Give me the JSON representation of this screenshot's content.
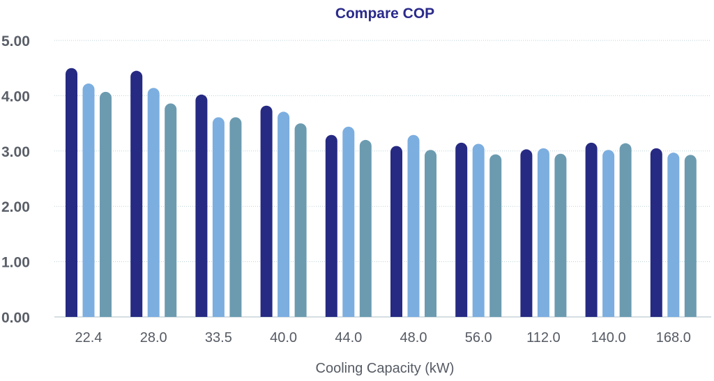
{
  "chart_data": {
    "type": "bar",
    "title": "Compare COP",
    "xlabel": "Cooling Capacity (kW)",
    "ylabel": "",
    "ylim": [
      0,
      5
    ],
    "yticks": [
      "0.00",
      "1.00",
      "2.00",
      "3.00",
      "4.00",
      "5.00"
    ],
    "categories": [
      "22.4",
      "28.0",
      "33.5",
      "40.0",
      "44.0",
      "48.0",
      "56.0",
      "112.0",
      "140.0",
      "168.0"
    ],
    "grid": true,
    "series": [
      {
        "color": "#262a82",
        "values": [
          4.5,
          4.45,
          4.02,
          3.82,
          3.29,
          3.09,
          3.15,
          3.03,
          3.15,
          3.05
        ]
      },
      {
        "color": "#7caee0",
        "values": [
          4.22,
          4.14,
          3.61,
          3.71,
          3.44,
          3.29,
          3.13,
          3.05,
          3.02,
          2.97
        ]
      },
      {
        "color": "#6c9bb0",
        "values": [
          4.07,
          3.86,
          3.61,
          3.5,
          3.2,
          3.02,
          2.94,
          2.95,
          3.14,
          2.93
        ]
      }
    ]
  }
}
